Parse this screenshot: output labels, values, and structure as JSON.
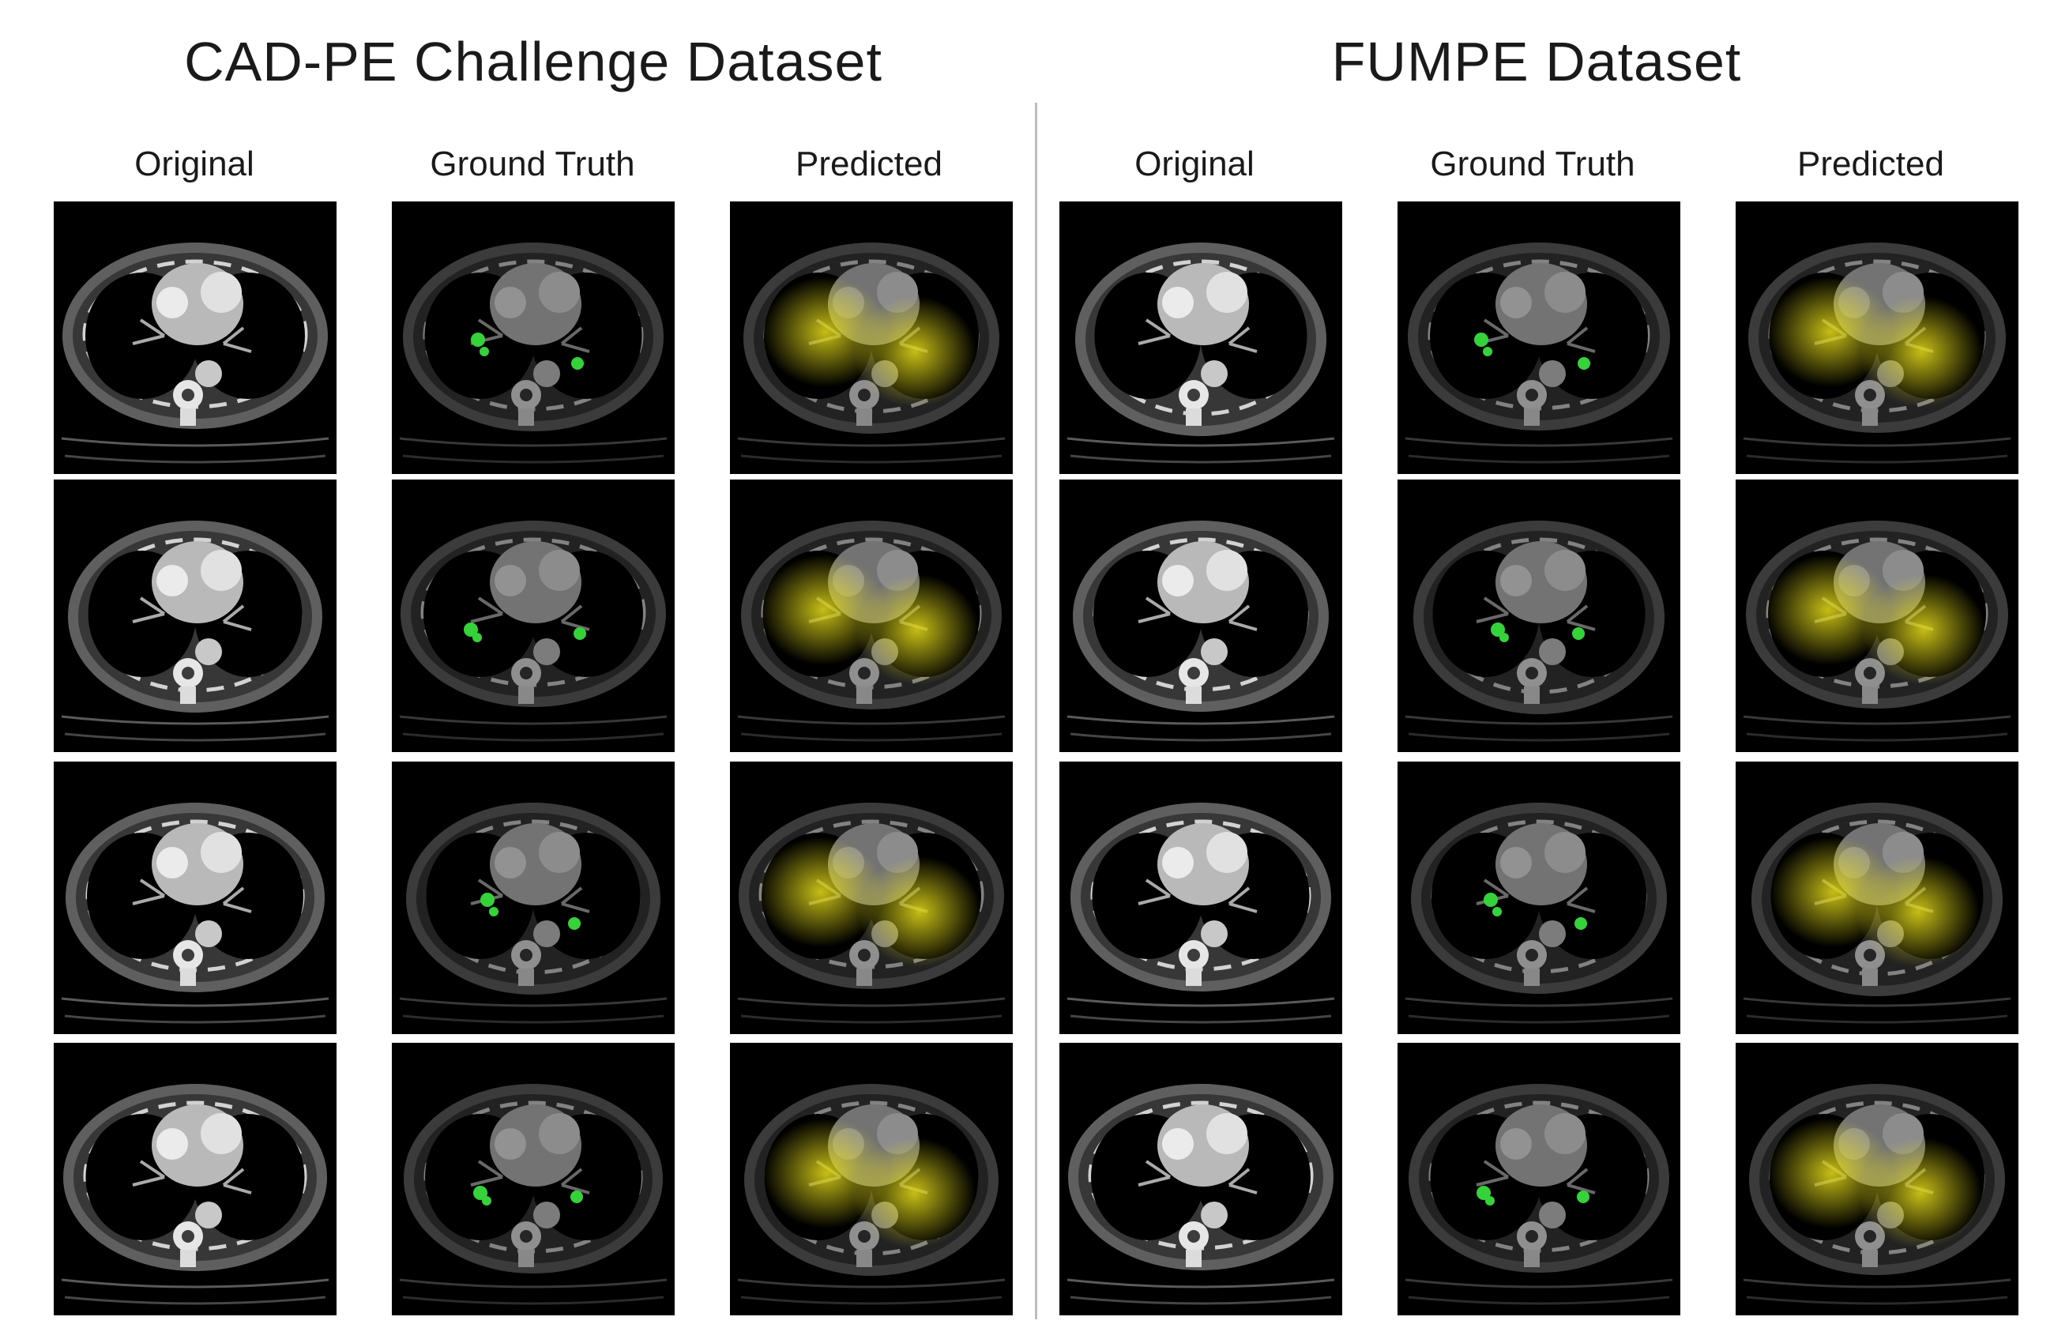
{
  "sections": [
    {
      "title": "CAD-PE Challenge Dataset",
      "columns": [
        "Original",
        "Ground Truth",
        "Predicted"
      ]
    },
    {
      "title": "FUMPE Dataset",
      "columns": [
        "Original",
        "Ground Truth",
        "Predicted"
      ]
    }
  ],
  "colors": {
    "background": "#ffffff",
    "divider": "#bdbdbd",
    "ground_truth_mask": "#35d23b",
    "prediction_heatmap": "#e9df1a",
    "scan_background": "#000000"
  },
  "rows": 4
}
